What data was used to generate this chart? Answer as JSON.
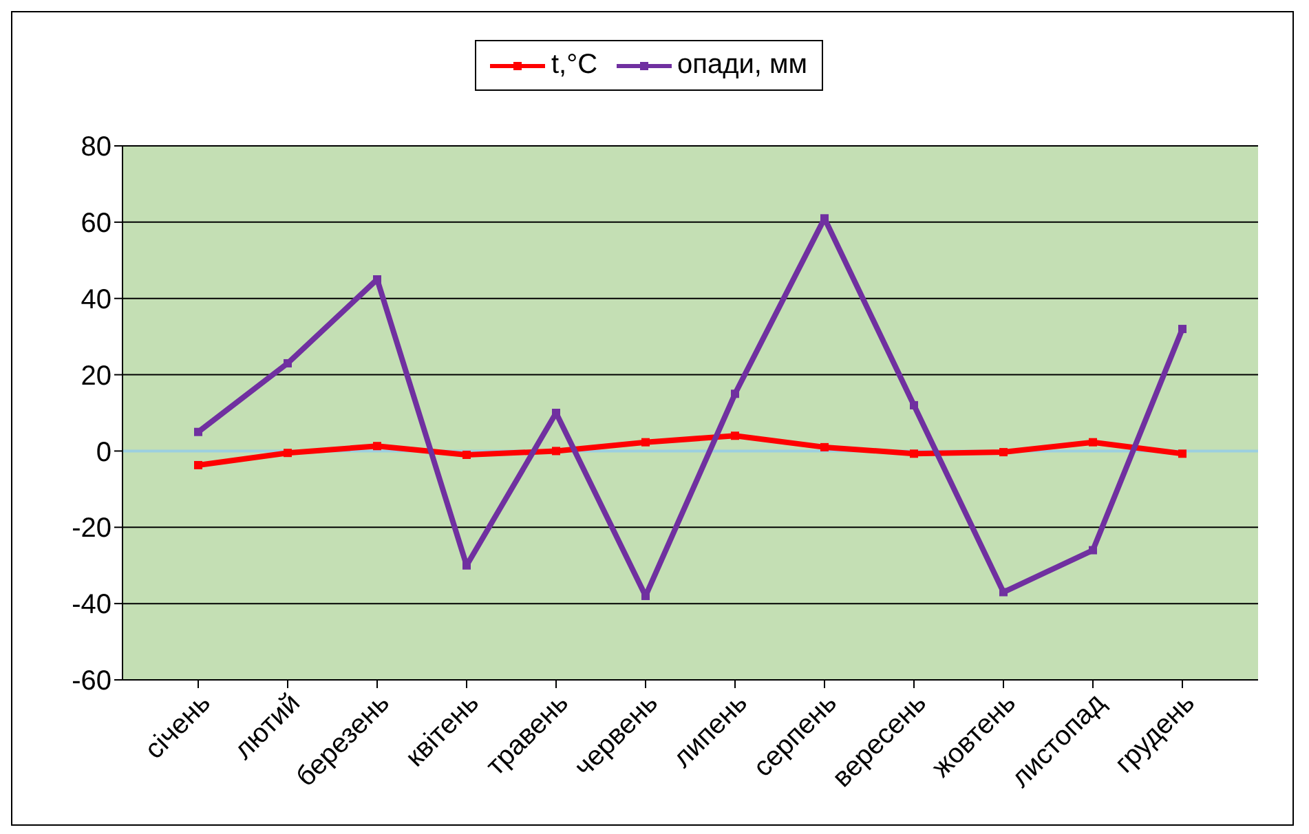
{
  "chart_data": {
    "type": "line",
    "categories": [
      "січень",
      "лютий",
      "березень",
      "квітень",
      "травень",
      "червень",
      "липень",
      "серпень",
      "вересень",
      "жовтень",
      "листопад",
      "грудень"
    ],
    "series": [
      {
        "name": "t,°C",
        "color": "#ff0000",
        "values": [
          -3.7,
          -0.5,
          1.3,
          -1,
          0,
          2.3,
          4,
          1,
          -0.7,
          -0.3,
          2.3,
          -0.7
        ]
      },
      {
        "name": "опади, мм",
        "color": "#7030a0",
        "values": [
          5,
          23,
          45,
          -30,
          10,
          -38,
          15,
          61,
          12,
          -37,
          -26,
          32
        ]
      }
    ],
    "ylim": [
      -60,
      80
    ],
    "yticks": [
      -60,
      -40,
      -20,
      0,
      20,
      40,
      60,
      80
    ],
    "grid": "y",
    "legend": "top",
    "marker": "square",
    "line_style": "solid",
    "ref_lines": [
      {
        "axis": "y",
        "value": 0,
        "color": "#9ccfe0"
      }
    ]
  }
}
